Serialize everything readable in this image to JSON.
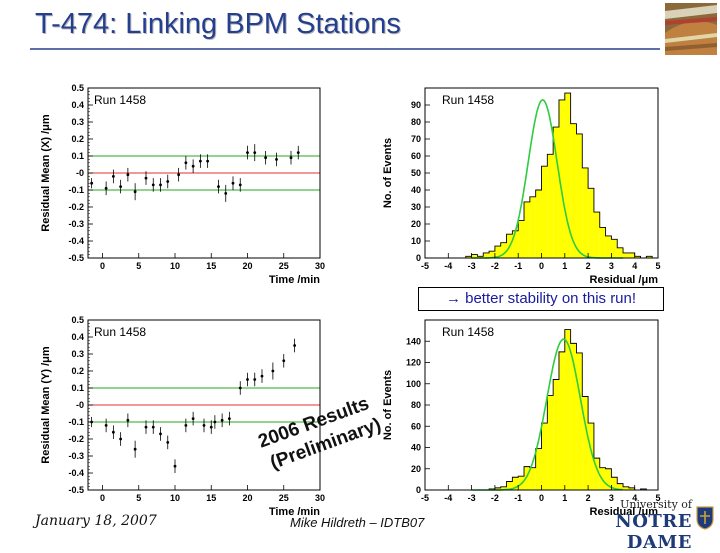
{
  "slide": {
    "title": "T-474: Linking BPM Stations",
    "footer_date": "January 18, 2007",
    "footer_author": "Mike Hildreth – IDTB07",
    "note": "→ better stability on this run!",
    "stamp_line1": "2006 Results",
    "stamp_line2": "(Preliminary)",
    "logo_top": "University of",
    "logo_bottom": "NOTRE DAME",
    "accent_color": "#243f8f",
    "photo_icon": "stadium-photo-icon",
    "logo_icon": "university-shield-icon"
  },
  "chart_data": [
    {
      "type": "scatter",
      "label": "Run 1458",
      "xlabel": "Time /min",
      "ylabel": "Residual Mean (X) /μm",
      "xlim": [
        -2,
        30
      ],
      "ylim": [
        -0.5,
        0.5
      ],
      "xticks": [
        0,
        5,
        10,
        15,
        20,
        25,
        30
      ],
      "xtick_labels": [
        "0",
        "5",
        "10",
        "15",
        "20",
        "25",
        "30"
      ],
      "yticks": [
        -0.5,
        -0.4,
        -0.3,
        -0.2,
        -0.1,
        0,
        0.1,
        0.2,
        0.3,
        0.4,
        0.5
      ],
      "ytick_labels": [
        "-0.5",
        "-0.4",
        "-0.3",
        "-0.2",
        "-0.1",
        "-0",
        "0.1",
        "0.2",
        "0.3",
        "0.4",
        "0.5"
      ],
      "hlines": [
        {
          "y": 0.0,
          "color": "#e03030"
        },
        {
          "y": 0.1,
          "color": "#22aa22"
        },
        {
          "y": -0.1,
          "color": "#22aa22"
        }
      ],
      "points": [
        {
          "x": -1.5,
          "y": -0.06,
          "e": 0.03
        },
        {
          "x": 0.5,
          "y": -0.09,
          "e": 0.04
        },
        {
          "x": 1.5,
          "y": -0.02,
          "e": 0.04
        },
        {
          "x": 2.5,
          "y": -0.08,
          "e": 0.04
        },
        {
          "x": 3.5,
          "y": -0.01,
          "e": 0.04
        },
        {
          "x": 4.5,
          "y": -0.11,
          "e": 0.05
        },
        {
          "x": 6.0,
          "y": -0.03,
          "e": 0.04
        },
        {
          "x": 7.0,
          "y": -0.07,
          "e": 0.04
        },
        {
          "x": 8.0,
          "y": -0.07,
          "e": 0.04
        },
        {
          "x": 9.0,
          "y": -0.05,
          "e": 0.04
        },
        {
          "x": 10.5,
          "y": -0.01,
          "e": 0.04
        },
        {
          "x": 11.5,
          "y": 0.06,
          "e": 0.04
        },
        {
          "x": 12.5,
          "y": 0.04,
          "e": 0.04
        },
        {
          "x": 13.5,
          "y": 0.07,
          "e": 0.04
        },
        {
          "x": 14.5,
          "y": 0.07,
          "e": 0.04
        },
        {
          "x": 16.0,
          "y": -0.08,
          "e": 0.04
        },
        {
          "x": 17.0,
          "y": -0.12,
          "e": 0.05
        },
        {
          "x": 18.0,
          "y": -0.06,
          "e": 0.04
        },
        {
          "x": 19.0,
          "y": -0.07,
          "e": 0.04
        },
        {
          "x": 20.0,
          "y": 0.12,
          "e": 0.04
        },
        {
          "x": 21.0,
          "y": 0.12,
          "e": 0.05
        },
        {
          "x": 22.5,
          "y": 0.09,
          "e": 0.04
        },
        {
          "x": 24.0,
          "y": 0.08,
          "e": 0.04
        },
        {
          "x": 26.0,
          "y": 0.09,
          "e": 0.04
        },
        {
          "x": 27.0,
          "y": 0.12,
          "e": 0.04
        }
      ]
    },
    {
      "type": "bar",
      "label": "Run 1458",
      "xlabel": "Residual /μm",
      "ylabel": "No. of Events",
      "xlim": [
        -5,
        5
      ],
      "ylim": [
        0,
        100
      ],
      "xticks": [
        -5,
        -4,
        -3,
        -2,
        -1,
        0,
        1,
        2,
        3,
        4,
        5
      ],
      "xtick_labels": [
        "-5",
        "-4",
        "-3",
        "-2",
        "-1",
        "0",
        "1",
        "2",
        "3",
        "4",
        "5"
      ],
      "yticks": [
        0,
        10,
        20,
        30,
        40,
        50,
        60,
        70,
        80,
        90
      ],
      "ytick_labels": [
        "0",
        "10",
        "20",
        "30",
        "40",
        "50",
        "60",
        "70",
        "80",
        "90"
      ],
      "bin_width": 0.25,
      "bin_start": -4.0,
      "values": [
        0,
        0,
        0,
        1,
        2,
        1,
        3,
        4,
        7,
        9,
        14,
        16,
        22,
        33,
        36,
        40,
        54,
        61,
        77,
        93,
        97,
        79,
        73,
        53,
        41,
        27,
        18,
        13,
        11,
        6,
        3,
        3,
        1,
        0,
        1,
        0
      ],
      "fit": {
        "type": "gaussian",
        "amplitude": 93,
        "mean": 0.05,
        "sigma": 0.62,
        "color": "#2ecc40"
      },
      "fill": "#ffff00"
    },
    {
      "type": "scatter",
      "label": "Run 1458",
      "xlabel": "Time /min",
      "ylabel": "Residual Mean (Y) /μm",
      "xlim": [
        -2,
        30
      ],
      "ylim": [
        -0.5,
        0.5
      ],
      "xticks": [
        0,
        5,
        10,
        15,
        20,
        25,
        30
      ],
      "xtick_labels": [
        "0",
        "5",
        "10",
        "15",
        "20",
        "25",
        "30"
      ],
      "yticks": [
        -0.5,
        -0.4,
        -0.3,
        -0.2,
        -0.1,
        0,
        0.1,
        0.2,
        0.3,
        0.4,
        0.5
      ],
      "ytick_labels": [
        "-0.5",
        "-0.4",
        "-0.3",
        "-0.2",
        "-0.1",
        "-0",
        "0.1",
        "0.2",
        "0.3",
        "0.4",
        "0.5"
      ],
      "hlines": [
        {
          "y": 0.0,
          "color": "#e03030"
        },
        {
          "y": 0.1,
          "color": "#22aa22"
        },
        {
          "y": -0.1,
          "color": "#22aa22"
        }
      ],
      "points": [
        {
          "x": -1.5,
          "y": -0.1,
          "e": 0.03
        },
        {
          "x": 0.5,
          "y": -0.12,
          "e": 0.04
        },
        {
          "x": 1.5,
          "y": -0.16,
          "e": 0.04
        },
        {
          "x": 2.5,
          "y": -0.2,
          "e": 0.04
        },
        {
          "x": 3.5,
          "y": -0.09,
          "e": 0.04
        },
        {
          "x": 4.5,
          "y": -0.26,
          "e": 0.05
        },
        {
          "x": 6.0,
          "y": -0.13,
          "e": 0.04
        },
        {
          "x": 7.0,
          "y": -0.13,
          "e": 0.04
        },
        {
          "x": 8.0,
          "y": -0.17,
          "e": 0.04
        },
        {
          "x": 9.0,
          "y": -0.22,
          "e": 0.04
        },
        {
          "x": 10.0,
          "y": -0.36,
          "e": 0.04
        },
        {
          "x": 11.5,
          "y": -0.12,
          "e": 0.04
        },
        {
          "x": 12.5,
          "y": -0.08,
          "e": 0.04
        },
        {
          "x": 14.0,
          "y": -0.12,
          "e": 0.04
        },
        {
          "x": 15.0,
          "y": -0.13,
          "e": 0.04
        },
        {
          "x": 15.5,
          "y": -0.1,
          "e": 0.04
        },
        {
          "x": 16.5,
          "y": -0.09,
          "e": 0.04
        },
        {
          "x": 17.5,
          "y": -0.08,
          "e": 0.04
        },
        {
          "x": 19.0,
          "y": 0.1,
          "e": 0.04
        },
        {
          "x": 20.0,
          "y": 0.15,
          "e": 0.04
        },
        {
          "x": 21.0,
          "y": 0.15,
          "e": 0.04
        },
        {
          "x": 22.0,
          "y": 0.17,
          "e": 0.04
        },
        {
          "x": 23.5,
          "y": 0.2,
          "e": 0.05
        },
        {
          "x": 25.0,
          "y": 0.26,
          "e": 0.04
        },
        {
          "x": 26.5,
          "y": 0.35,
          "e": 0.04
        }
      ]
    },
    {
      "type": "bar",
      "label": "Run 1458",
      "xlabel": "Residual /μm",
      "ylabel": "No. of Events",
      "xlim": [
        -5,
        5
      ],
      "ylim": [
        0,
        160
      ],
      "xticks": [
        -5,
        -4,
        -3,
        -2,
        -1,
        0,
        1,
        2,
        3,
        4,
        5
      ],
      "xtick_labels": [
        "-5",
        "-4",
        "-3",
        "-2",
        "-1",
        "0",
        "1",
        "2",
        "3",
        "4",
        "5"
      ],
      "yticks": [
        0,
        20,
        40,
        60,
        80,
        100,
        120,
        140
      ],
      "ytick_labels": [
        "0",
        "20",
        "40",
        "60",
        "80",
        "100",
        "120",
        "140"
      ],
      "bin_width": 0.25,
      "bin_start": -4.0,
      "values": [
        0,
        0,
        0,
        0,
        0,
        0,
        0,
        1,
        2,
        3,
        8,
        12,
        13,
        22,
        21,
        39,
        63,
        89,
        104,
        130,
        151,
        138,
        129,
        88,
        63,
        30,
        21,
        20,
        12,
        6,
        3,
        2,
        0,
        1,
        0,
        0
      ],
      "fit": {
        "type": "gaussian",
        "amplitude": 142,
        "mean": 0.95,
        "sigma": 0.72,
        "color": "#2ecc40"
      },
      "fill": "#ffff00"
    }
  ]
}
